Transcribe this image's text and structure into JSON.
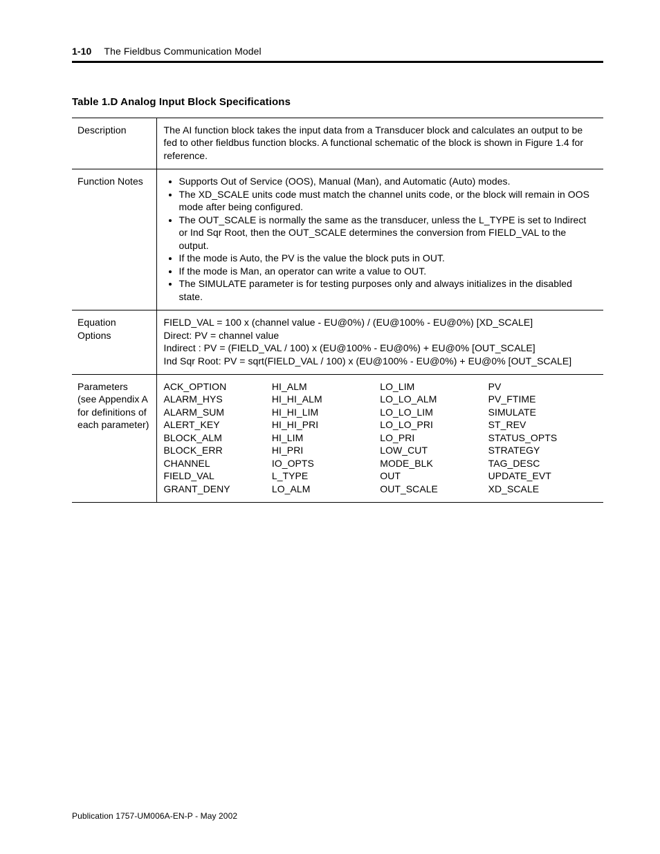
{
  "page": {
    "number": "1-10",
    "section": "The Fieldbus Communication Model",
    "footer": "Publication 1757-UM006A-EN-P - May 2002"
  },
  "table": {
    "title": "Table 1.D  Analog Input Block Specifications",
    "rows": {
      "description": {
        "label": "Description",
        "text": "The AI function block takes the input data from a Transducer block and calculates an output to be fed to other fieldbus function blocks. A functional schematic of the block is shown in Figure 1.4 for reference."
      },
      "function_notes": {
        "label": "Function Notes",
        "items": [
          "Supports Out of Service (OOS), Manual (Man), and Automatic (Auto) modes.",
          "The XD_SCALE units code must match the channel units code, or the block will remain in OOS mode after being configured.",
          "The OUT_SCALE is normally the same as the transducer, unless the L_TYPE is set to Indirect or Ind Sqr Root, then the OUT_SCALE determines the conversion from FIELD_VAL to the output.",
          "If the mode is Auto, the PV is the value the block puts in OUT.",
          "If the mode is Man, an operator can write a value to OUT.",
          "The SIMULATE parameter is for testing purposes only and always initializes in the disabled state."
        ]
      },
      "equation_options": {
        "label": "Equation Options",
        "lines": [
          "FIELD_VAL = 100 x (channel value - EU@0%) / (EU@100% - EU@0%) [XD_SCALE]",
          "Direct: PV = channel value",
          "Indirect : PV = (FIELD_VAL / 100) x (EU@100% - EU@0%) + EU@0% [OUT_SCALE]",
          "Ind Sqr Root: PV = sqrt(FIELD_VAL / 100) x (EU@100% - EU@0%) + EU@0% [OUT_SCALE]"
        ]
      },
      "parameters": {
        "label_lines": [
          "Parameters",
          "(see Appendix A",
          "for definitions of",
          "each parameter)"
        ],
        "columns": [
          [
            "ACK_OPTION",
            "ALARM_HYS",
            "ALARM_SUM",
            "ALERT_KEY",
            "BLOCK_ALM",
            "BLOCK_ERR",
            "CHANNEL",
            "FIELD_VAL",
            "GRANT_DENY"
          ],
          [
            "HI_ALM",
            "HI_HI_ALM",
            "HI_HI_LIM",
            "HI_HI_PRI",
            "HI_LIM",
            "HI_PRI",
            "IO_OPTS",
            "L_TYPE",
            "LO_ALM"
          ],
          [
            "LO_LIM",
            "LO_LO_ALM",
            "LO_LO_LIM",
            "LO_LO_PRI",
            "LO_PRI",
            "LOW_CUT",
            "MODE_BLK",
            "OUT",
            "OUT_SCALE"
          ],
          [
            "PV",
            "PV_FTIME",
            "SIMULATE",
            "ST_REV",
            "STATUS_OPTS",
            "STRATEGY",
            "TAG_DESC",
            "UPDATE_EVT",
            "XD_SCALE"
          ]
        ]
      }
    }
  }
}
